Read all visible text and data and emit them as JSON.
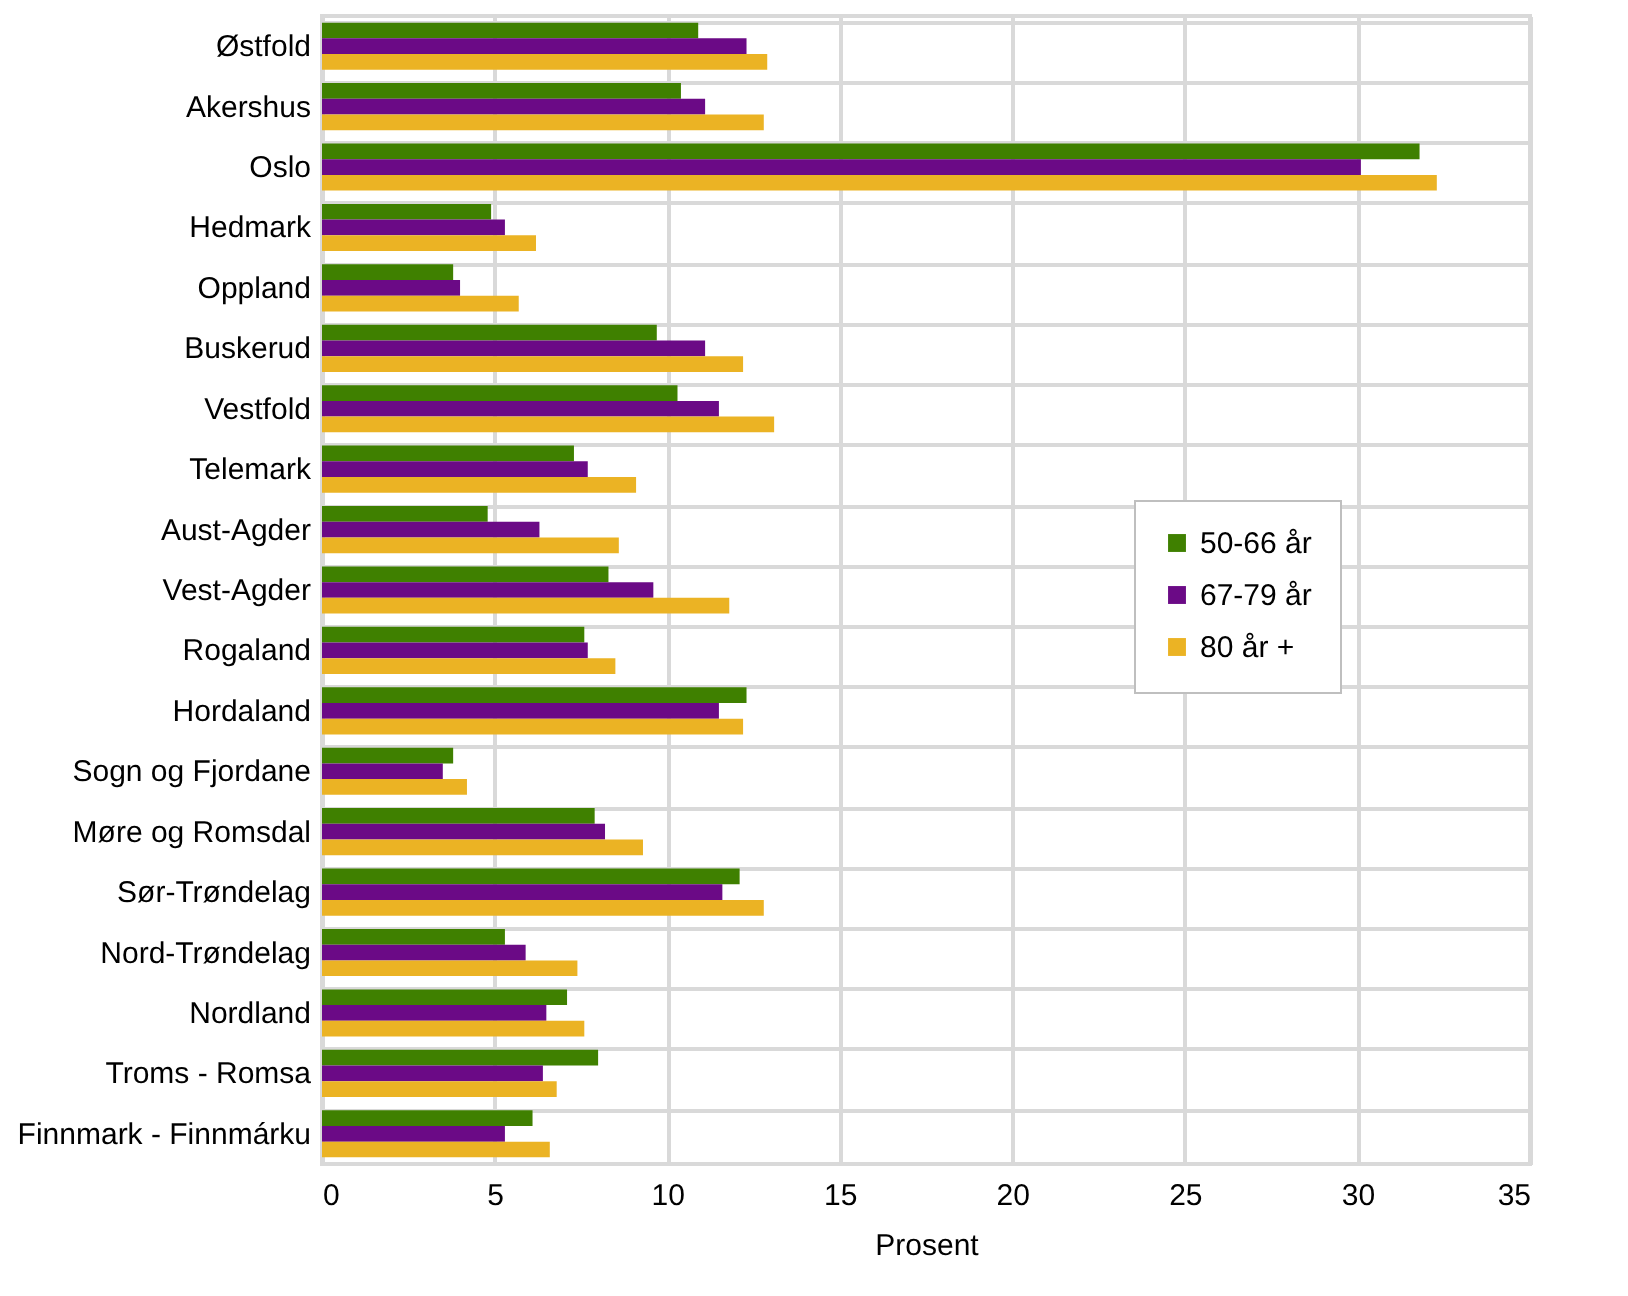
{
  "chart_data": {
    "type": "bar",
    "orientation": "horizontal",
    "xlabel": "Prosent",
    "categories": [
      "Østfold",
      "Akershus",
      "Oslo",
      "Hedmark",
      "Oppland",
      "Buskerud",
      "Vestfold",
      "Telemark",
      "Aust-Agder",
      "Vest-Agder",
      "Rogaland",
      "Hordaland",
      "Sogn og Fjordane",
      "Møre og Romsdal",
      "Sør-Trøndelag",
      "Nord-Trøndelag",
      "Nordland",
      "Troms - Romsa",
      "Finnmark - Finnmárku"
    ],
    "series": [
      {
        "name": "50-66 år",
        "color": "#3f8000",
        "values": [
          10.9,
          10.4,
          31.8,
          4.9,
          3.8,
          9.7,
          10.3,
          7.3,
          4.8,
          8.3,
          7.6,
          12.3,
          3.8,
          7.9,
          12.1,
          5.3,
          7.1,
          8.0,
          6.1
        ]
      },
      {
        "name": "67-79 år",
        "color": "#6b0a86",
        "values": [
          12.3,
          11.1,
          30.1,
          5.3,
          4.0,
          11.1,
          11.5,
          7.7,
          6.3,
          9.6,
          7.7,
          11.5,
          3.5,
          8.2,
          11.6,
          5.9,
          6.5,
          6.4,
          5.3
        ]
      },
      {
        "name": "80 år +",
        "color": "#ebb324",
        "values": [
          12.9,
          12.8,
          32.3,
          6.2,
          5.7,
          12.2,
          13.1,
          9.1,
          8.6,
          11.8,
          8.5,
          12.2,
          4.2,
          9.3,
          12.8,
          7.4,
          7.6,
          6.8,
          6.6
        ]
      }
    ],
    "xlim": [
      0,
      35
    ],
    "xticks": [
      0,
      5,
      10,
      15,
      20,
      25,
      30,
      35
    ],
    "grid": true,
    "legend": "right"
  }
}
